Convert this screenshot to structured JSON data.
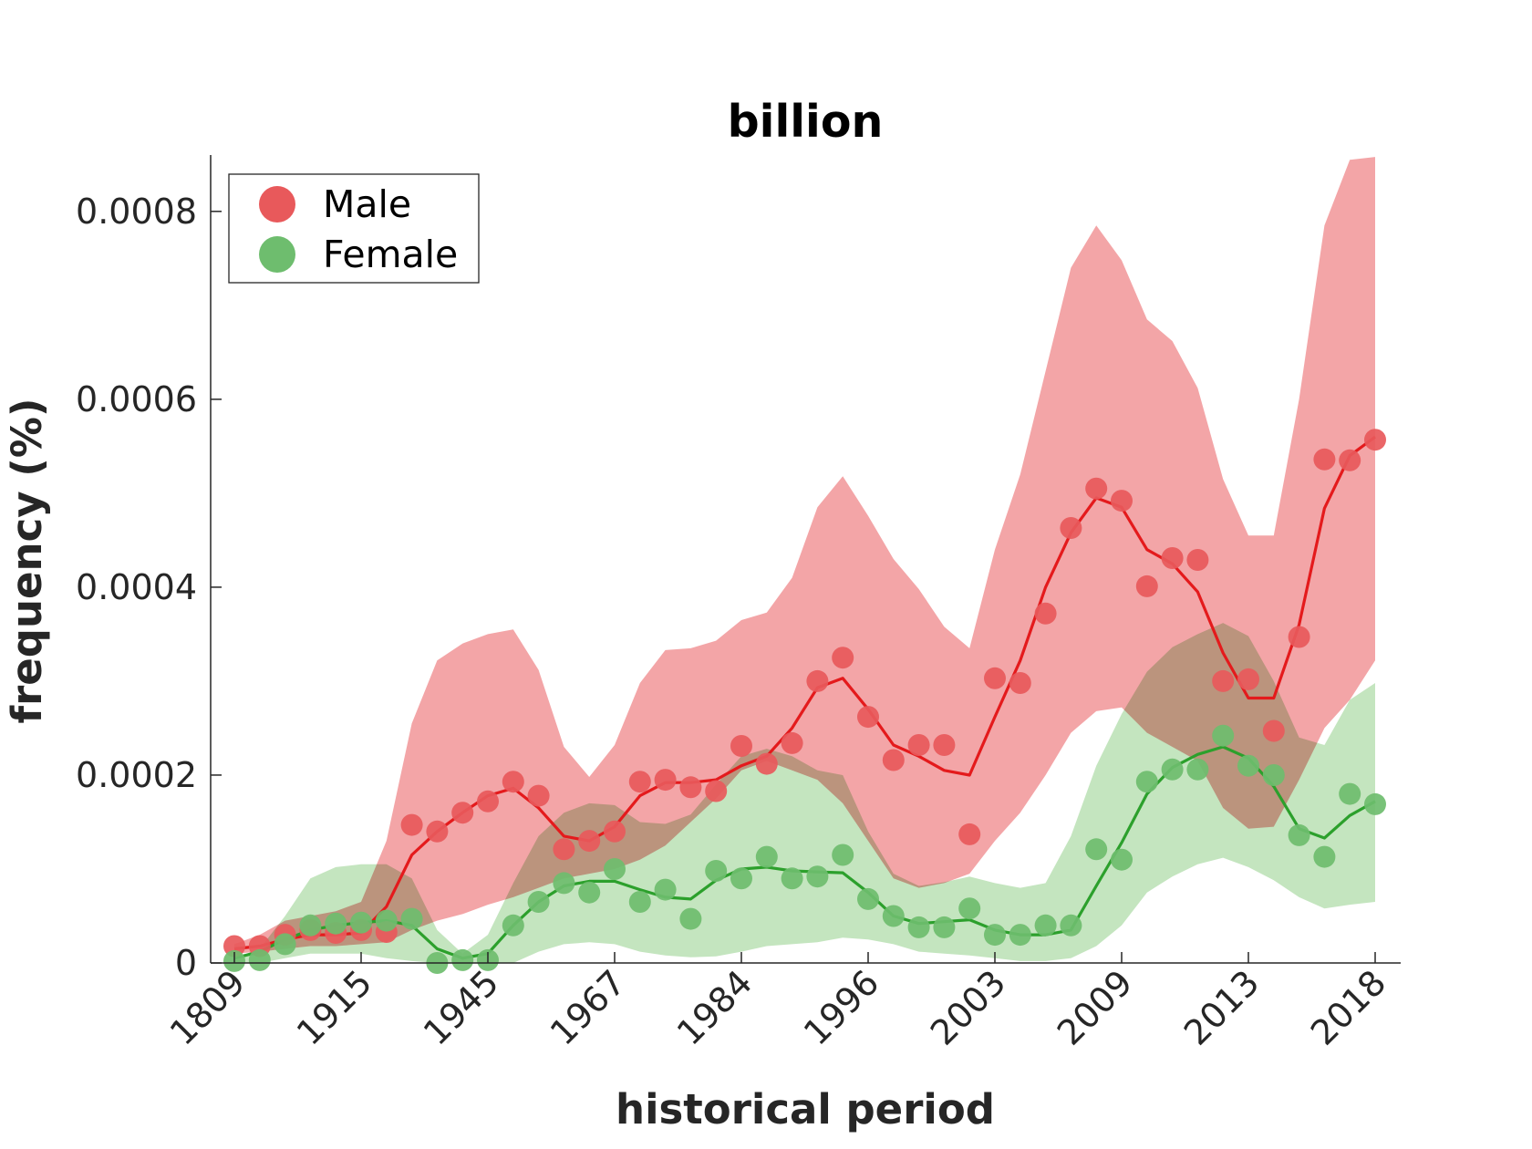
{
  "chart_data": {
    "type": "scatter",
    "title": "billion",
    "xlabel": "historical period",
    "ylabel": "frequency (%)",
    "ylim": [
      0,
      0.00086
    ],
    "yticks": [
      "0",
      "0.0002",
      "0.0004",
      "0.0006",
      "0.0008"
    ],
    "ytick_values": [
      0,
      0.0002,
      0.0004,
      0.0006,
      0.0008
    ],
    "x_index_range": [
      0,
      45
    ],
    "xtick_labels": [
      "1809",
      "1915",
      "1945",
      "1967",
      "1984",
      "1996",
      "2003",
      "2009",
      "2013",
      "2018"
    ],
    "xtick_indices": [
      0,
      5,
      10,
      15,
      20,
      25,
      30,
      35,
      40,
      45
    ],
    "grid": false,
    "legend_position": "top-left",
    "series": [
      {
        "name": "Male",
        "color": "#e41a1c",
        "marker_color": "#e8595b",
        "band_color": "#f2a0a2",
        "points": [
          1.8e-05,
          1.8e-05,
          3e-05,
          3.5e-05,
          3.2e-05,
          3.5e-05,
          3.3e-05,
          0.000147,
          0.00014,
          0.00016,
          0.000172,
          0.000193,
          0.000178,
          0.000121,
          0.00013,
          0.00014,
          0.000193,
          0.000195,
          0.000187,
          0.000183,
          0.000231,
          0.000212,
          0.000234,
          0.0003,
          0.000325,
          0.000262,
          0.000216,
          0.000232,
          0.000232,
          0.000137,
          0.000303,
          0.000298,
          0.000372,
          0.000463,
          0.000505,
          0.000492,
          0.000401,
          0.000431,
          0.000429,
          0.0003,
          0.000302,
          0.000247,
          0.000347,
          0.000536,
          0.000535,
          0.000557
        ],
        "trend": [
          1.5e-05,
          1.8e-05,
          2.5e-05,
          3e-05,
          3e-05,
          3.2e-05,
          6e-05,
          0.000115,
          0.00014,
          0.00016,
          0.000178,
          0.000186,
          0.000165,
          0.000135,
          0.00013,
          0.000145,
          0.000178,
          0.000192,
          0.000192,
          0.000195,
          0.00021,
          0.00022,
          0.00025,
          0.000293,
          0.000303,
          0.00027,
          0.000232,
          0.00022,
          0.000205,
          0.0002,
          0.000262,
          0.000322,
          0.0004,
          0.000458,
          0.000495,
          0.000485,
          0.00044,
          0.000425,
          0.000395,
          0.00033,
          0.000282,
          0.000282,
          0.00036,
          0.000484,
          0.00054,
          0.00056
        ],
        "band_upper": [
          2e-05,
          3e-05,
          4.5e-05,
          5e-05,
          5.5e-05,
          6.5e-05,
          0.00013,
          0.000255,
          0.000322,
          0.00034,
          0.00035,
          0.000355,
          0.000312,
          0.00023,
          0.000198,
          0.000232,
          0.000298,
          0.000333,
          0.000335,
          0.000343,
          0.000365,
          0.000373,
          0.00041,
          0.000485,
          0.000518,
          0.000476,
          0.00043,
          0.000398,
          0.000358,
          0.000335,
          0.00044,
          0.00052,
          0.00063,
          0.00074,
          0.000785,
          0.000748,
          0.000685,
          0.000662,
          0.000612,
          0.000515,
          0.000455,
          0.000455,
          0.0006,
          0.000785,
          0.000855,
          0.000858
        ],
        "band_lower": [
          1e-05,
          1.2e-05,
          1.5e-05,
          1.8e-05,
          1.8e-05,
          2e-05,
          2.2e-05,
          3.5e-05,
          4.5e-05,
          5.2e-05,
          6.2e-05,
          7e-05,
          8e-05,
          9e-05,
          9.5e-05,
          0.0001,
          0.00011,
          0.000125,
          0.00015,
          0.000175,
          0.000205,
          0.000215,
          0.000205,
          0.000195,
          0.00017,
          0.00013,
          9e-05,
          8e-05,
          8.5e-05,
          9.5e-05,
          0.00013,
          0.00016,
          0.0002,
          0.000245,
          0.000268,
          0.000272,
          0.000245,
          0.00023,
          0.000215,
          0.000165,
          0.000143,
          0.000145,
          0.000195,
          0.00025,
          0.00028,
          0.000322
        ]
      },
      {
        "name": "Female",
        "color": "#2ca02c",
        "marker_color": "#6ebd6e",
        "band_color": "#b0dcaa",
        "points": [
          2e-06,
          3e-06,
          2e-05,
          4e-05,
          4.2e-05,
          4.3e-05,
          4.5e-05,
          4.7e-05,
          0.0,
          3e-06,
          3e-06,
          4e-05,
          6.5e-05,
          8.5e-05,
          7.5e-05,
          0.0001,
          6.5e-05,
          7.8e-05,
          4.7e-05,
          9.8e-05,
          9e-05,
          0.000113,
          9e-05,
          9.2e-05,
          0.000115,
          6.8e-05,
          5e-05,
          3.8e-05,
          3.8e-05,
          5.8e-05,
          3e-05,
          3e-05,
          4e-05,
          4e-05,
          0.000121,
          0.00011,
          0.000193,
          0.000206,
          0.000206,
          0.000242,
          0.00021,
          0.0002,
          0.000136,
          0.000113,
          0.00018,
          0.000169
        ],
        "trend": [
          5e-06,
          1.2e-05,
          2.5e-05,
          3.5e-05,
          4e-05,
          4.3e-05,
          4.5e-05,
          4e-05,
          1.5e-05,
          5e-06,
          1e-05,
          4e-05,
          6.5e-05,
          8.2e-05,
          8.7e-05,
          8.7e-05,
          7.8e-05,
          7e-05,
          6.8e-05,
          8.8e-05,
          0.0001,
          0.000102,
          9.8e-05,
          9.7e-05,
          9.6e-05,
          7.5e-05,
          5e-05,
          4.2e-05,
          4.4e-05,
          4.6e-05,
          3.5e-05,
          3e-05,
          3e-05,
          3.5e-05,
          8.2e-05,
          0.000128,
          0.00018,
          0.000208,
          0.000222,
          0.00023,
          0.000218,
          0.000188,
          0.000143,
          0.000133,
          0.000157,
          0.000172
        ],
        "band_upper": [
          5e-06,
          1.5e-05,
          5e-05,
          9e-05,
          0.000102,
          0.000105,
          0.000105,
          9e-05,
          3.5e-05,
          1e-05,
          3e-05,
          8.5e-05,
          0.000135,
          0.00016,
          0.00017,
          0.000168,
          0.00015,
          0.000148,
          0.000158,
          0.00019,
          0.00022,
          0.000228,
          0.00022,
          0.000205,
          0.0002,
          0.00014,
          9.5e-05,
          8.2e-05,
          8.6e-05,
          9.2e-05,
          8.5e-05,
          8e-05,
          8.5e-05,
          0.000135,
          0.00021,
          0.000265,
          0.00031,
          0.000336,
          0.00035,
          0.000362,
          0.000348,
          0.0003,
          0.00024,
          0.000232,
          0.00028,
          0.000298
        ],
        "band_lower": [
          0.0,
          0.0,
          5e-06,
          1e-05,
          1e-05,
          1e-05,
          5e-06,
          2e-06,
          0.0,
          0.0,
          0.0,
          0.0,
          1.2e-05,
          2e-05,
          2.2e-05,
          2e-05,
          1.2e-05,
          8e-06,
          6e-06,
          7e-06,
          1.2e-05,
          1.8e-05,
          2e-05,
          2.2e-05,
          2.7e-05,
          2.5e-05,
          2e-05,
          1.2e-05,
          1e-05,
          8e-06,
          5e-06,
          2e-06,
          2e-06,
          5e-06,
          1.8e-05,
          4e-05,
          7.5e-05,
          9.2e-05,
          0.000105,
          0.000112,
          0.000102,
          8.8e-05,
          7e-05,
          5.8e-05,
          6.2e-05,
          6.5e-05
        ]
      }
    ]
  }
}
